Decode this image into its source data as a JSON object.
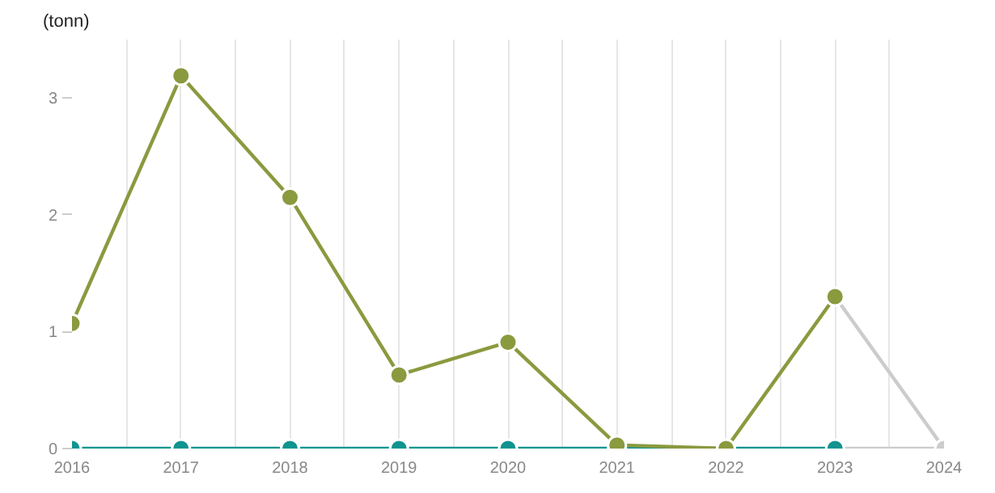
{
  "chart_data": {
    "type": "line",
    "ylabel": "(tonn)",
    "x": [
      2016,
      2017,
      2018,
      2019,
      2020,
      2021,
      2022,
      2023,
      2024
    ],
    "series": [
      {
        "color": "#cccccc",
        "values": [
          null,
          null,
          null,
          null,
          null,
          null,
          null,
          1.3,
          0
        ]
      },
      {
        "color": "#cccccc",
        "values": [
          null,
          null,
          null,
          null,
          null,
          null,
          null,
          0,
          0
        ]
      },
      {
        "color": "#0f9490",
        "values": [
          0,
          0,
          0,
          0,
          0,
          0,
          0,
          0,
          null
        ]
      },
      {
        "color": "#8a9a3f",
        "values": [
          1.07,
          3.19,
          2.15,
          0.63,
          0.91,
          0.03,
          0,
          1.3,
          null
        ]
      }
    ],
    "xlim": [
      2016,
      2024
    ],
    "ylim": [
      0,
      3.5
    ],
    "xticks": [
      2016,
      {
        "value": 2016.5,
        "label": null
      },
      2017,
      {
        "value": 2017.5,
        "label": null
      },
      2018,
      {
        "value": 2018.5,
        "label": null
      },
      2019,
      {
        "value": 2019.5,
        "label": null
      },
      2020,
      {
        "value": 2020.5,
        "label": null
      },
      2021,
      {
        "value": 2021.5,
        "label": null
      },
      2022,
      {
        "value": 2022.5,
        "label": null
      },
      2023,
      {
        "value": 2023.5,
        "label": null
      },
      2024
    ],
    "yticks": [
      0,
      1,
      2,
      3
    ],
    "grid": "x",
    "marker": "circle",
    "line_style": "solid"
  }
}
